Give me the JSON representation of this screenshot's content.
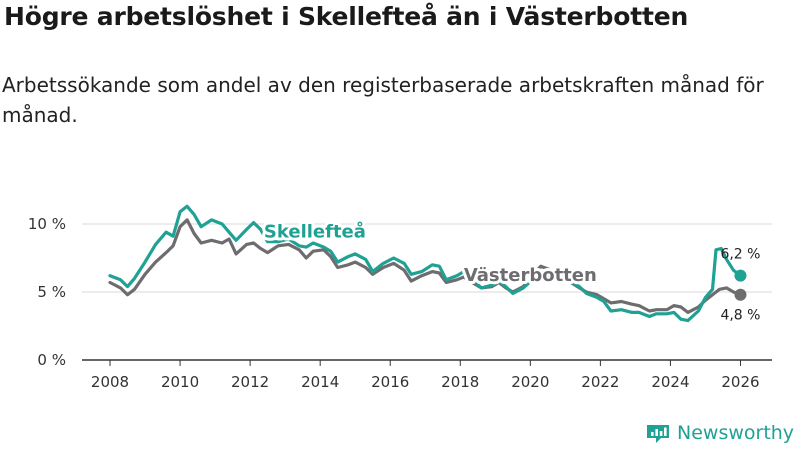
{
  "title": "Högre arbetslöshet i Skellefteå än i Västerbotten",
  "subtitle": "Arbetssökande som andel av den registerbaserade arbetskraften månad för månad.",
  "brand": {
    "name": "Newsworthy",
    "icon": "newsworthy-logo-icon"
  },
  "colors": {
    "skelleftea": "#1fa194",
    "vasterbotten": "#6e6c6f",
    "grid": "#d8d8d8"
  },
  "chart_data": {
    "type": "line",
    "title": "Högre arbetslöshet i Skellefteå än i Västerbotten",
    "xlabel": "",
    "ylabel": "",
    "xlim": [
      2007.2,
      2026.9
    ],
    "ylim": [
      0,
      12.5
    ],
    "x_ticks": [
      2008,
      2010,
      2012,
      2014,
      2016,
      2018,
      2020,
      2022,
      2024,
      2026
    ],
    "x_tick_labels": [
      "2008",
      "2010",
      "2012",
      "2014",
      "2016",
      "2018",
      "2020",
      "2022",
      "2024",
      "2026"
    ],
    "y_ticks": [
      0,
      5,
      10
    ],
    "y_tick_labels": [
      "0 %",
      "5 %",
      "10 %"
    ],
    "grid": true,
    "series": [
      {
        "name": "Skellefteå",
        "color": "#1fa194",
        "end_label": "6,2 %",
        "points": [
          [
            2008.0,
            6.2
          ],
          [
            2008.3,
            5.9
          ],
          [
            2008.5,
            5.4
          ],
          [
            2008.7,
            6.0
          ],
          [
            2009.0,
            7.2
          ],
          [
            2009.3,
            8.5
          ],
          [
            2009.6,
            9.4
          ],
          [
            2009.8,
            9.1
          ],
          [
            2010.0,
            10.9
          ],
          [
            2010.2,
            11.3
          ],
          [
            2010.4,
            10.7
          ],
          [
            2010.6,
            9.8
          ],
          [
            2010.9,
            10.3
          ],
          [
            2011.2,
            10.0
          ],
          [
            2011.4,
            9.4
          ],
          [
            2011.6,
            8.8
          ],
          [
            2011.9,
            9.6
          ],
          [
            2012.1,
            10.1
          ],
          [
            2012.3,
            9.6
          ],
          [
            2012.5,
            8.7
          ],
          [
            2012.8,
            8.7
          ],
          [
            2013.1,
            8.9
          ],
          [
            2013.4,
            8.4
          ],
          [
            2013.6,
            8.3
          ],
          [
            2013.8,
            8.6
          ],
          [
            2014.1,
            8.3
          ],
          [
            2014.3,
            8.0
          ],
          [
            2014.5,
            7.2
          ],
          [
            2014.8,
            7.6
          ],
          [
            2015.0,
            7.8
          ],
          [
            2015.3,
            7.4
          ],
          [
            2015.5,
            6.5
          ],
          [
            2015.8,
            7.1
          ],
          [
            2016.1,
            7.5
          ],
          [
            2016.4,
            7.1
          ],
          [
            2016.6,
            6.3
          ],
          [
            2016.9,
            6.5
          ],
          [
            2017.2,
            7.0
          ],
          [
            2017.4,
            6.9
          ],
          [
            2017.6,
            5.9
          ],
          [
            2017.9,
            6.2
          ],
          [
            2018.1,
            6.5
          ],
          [
            2018.4,
            5.8
          ],
          [
            2018.6,
            5.3
          ],
          [
            2018.9,
            5.5
          ],
          [
            2019.1,
            5.8
          ],
          [
            2019.3,
            5.4
          ],
          [
            2019.5,
            4.9
          ],
          [
            2019.8,
            5.3
          ],
          [
            2020.1,
            6.0
          ],
          [
            2020.3,
            6.3
          ],
          [
            2020.6,
            6.1
          ],
          [
            2020.9,
            6.2
          ],
          [
            2021.1,
            5.8
          ],
          [
            2021.4,
            5.4
          ],
          [
            2021.6,
            4.9
          ],
          [
            2021.9,
            4.6
          ],
          [
            2022.1,
            4.3
          ],
          [
            2022.3,
            3.6
          ],
          [
            2022.6,
            3.7
          ],
          [
            2022.9,
            3.5
          ],
          [
            2023.1,
            3.5
          ],
          [
            2023.4,
            3.2
          ],
          [
            2023.6,
            3.4
          ],
          [
            2023.9,
            3.4
          ],
          [
            2024.1,
            3.5
          ],
          [
            2024.3,
            3.0
          ],
          [
            2024.5,
            2.9
          ],
          [
            2024.8,
            3.6
          ],
          [
            2025.0,
            4.6
          ],
          [
            2025.2,
            5.2
          ],
          [
            2025.3,
            8.1
          ],
          [
            2025.45,
            8.2
          ],
          [
            2025.6,
            7.4
          ],
          [
            2025.8,
            6.6
          ],
          [
            2026.0,
            6.2
          ]
        ]
      },
      {
        "name": "Västerbotten",
        "color": "#6e6c6f",
        "end_label": "4,8 %",
        "points": [
          [
            2008.0,
            5.7
          ],
          [
            2008.3,
            5.3
          ],
          [
            2008.5,
            4.8
          ],
          [
            2008.7,
            5.2
          ],
          [
            2009.0,
            6.3
          ],
          [
            2009.3,
            7.2
          ],
          [
            2009.6,
            7.9
          ],
          [
            2009.8,
            8.4
          ],
          [
            2010.0,
            9.8
          ],
          [
            2010.2,
            10.3
          ],
          [
            2010.4,
            9.3
          ],
          [
            2010.6,
            8.6
          ],
          [
            2010.9,
            8.8
          ],
          [
            2011.2,
            8.6
          ],
          [
            2011.4,
            8.9
          ],
          [
            2011.6,
            7.8
          ],
          [
            2011.9,
            8.5
          ],
          [
            2012.1,
            8.6
          ],
          [
            2012.3,
            8.2
          ],
          [
            2012.5,
            7.9
          ],
          [
            2012.8,
            8.4
          ],
          [
            2013.1,
            8.5
          ],
          [
            2013.4,
            8.1
          ],
          [
            2013.6,
            7.5
          ],
          [
            2013.8,
            8.0
          ],
          [
            2014.1,
            8.1
          ],
          [
            2014.3,
            7.6
          ],
          [
            2014.5,
            6.8
          ],
          [
            2014.8,
            7.0
          ],
          [
            2015.0,
            7.2
          ],
          [
            2015.3,
            6.8
          ],
          [
            2015.5,
            6.3
          ],
          [
            2015.8,
            6.8
          ],
          [
            2016.1,
            7.1
          ],
          [
            2016.4,
            6.6
          ],
          [
            2016.6,
            5.8
          ],
          [
            2016.9,
            6.2
          ],
          [
            2017.2,
            6.5
          ],
          [
            2017.4,
            6.4
          ],
          [
            2017.6,
            5.7
          ],
          [
            2017.9,
            5.9
          ],
          [
            2018.1,
            6.1
          ],
          [
            2018.4,
            5.6
          ],
          [
            2018.6,
            5.3
          ],
          [
            2018.9,
            5.4
          ],
          [
            2019.1,
            5.7
          ],
          [
            2019.3,
            5.3
          ],
          [
            2019.5,
            5.0
          ],
          [
            2019.8,
            5.4
          ],
          [
            2020.1,
            6.3
          ],
          [
            2020.3,
            6.9
          ],
          [
            2020.6,
            6.6
          ],
          [
            2020.9,
            6.4
          ],
          [
            2021.1,
            5.8
          ],
          [
            2021.4,
            5.3
          ],
          [
            2021.6,
            5.0
          ],
          [
            2021.9,
            4.8
          ],
          [
            2022.1,
            4.5
          ],
          [
            2022.3,
            4.2
          ],
          [
            2022.6,
            4.3
          ],
          [
            2022.9,
            4.1
          ],
          [
            2023.1,
            4.0
          ],
          [
            2023.4,
            3.6
          ],
          [
            2023.6,
            3.7
          ],
          [
            2023.9,
            3.7
          ],
          [
            2024.1,
            4.0
          ],
          [
            2024.3,
            3.9
          ],
          [
            2024.5,
            3.5
          ],
          [
            2024.8,
            3.9
          ],
          [
            2025.0,
            4.4
          ],
          [
            2025.2,
            4.8
          ],
          [
            2025.4,
            5.2
          ],
          [
            2025.6,
            5.3
          ],
          [
            2025.8,
            5.0
          ],
          [
            2026.0,
            4.8
          ]
        ]
      }
    ],
    "annotations": [
      {
        "text": "Skellefteå",
        "series": "Skellefteå",
        "anchor": [
          2013.85,
          9.0
        ]
      },
      {
        "text": "Västerbotten",
        "series": "Västerbotten",
        "anchor": [
          2020.0,
          5.8
        ]
      }
    ]
  }
}
